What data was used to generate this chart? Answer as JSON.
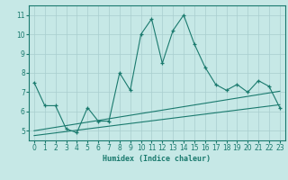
{
  "xlabel": "Humidex (Indice chaleur)",
  "background_color": "#c6e8e6",
  "line_color": "#1a7a6e",
  "grid_color": "#a8cece",
  "xlim": [
    -0.5,
    23.5
  ],
  "ylim": [
    4.5,
    11.5
  ],
  "yticks": [
    5,
    6,
    7,
    8,
    9,
    10,
    11
  ],
  "xticks": [
    0,
    1,
    2,
    3,
    4,
    5,
    6,
    7,
    8,
    9,
    10,
    11,
    12,
    13,
    14,
    15,
    16,
    17,
    18,
    19,
    20,
    21,
    22,
    23
  ],
  "main_x": [
    0,
    1,
    2,
    3,
    4,
    5,
    6,
    7,
    8,
    9,
    10,
    11,
    12,
    13,
    14,
    15,
    16,
    17,
    18,
    19,
    20,
    21,
    22,
    23
  ],
  "main_y": [
    7.5,
    6.3,
    6.3,
    5.1,
    4.9,
    6.2,
    5.5,
    5.5,
    8.0,
    7.1,
    10.0,
    10.8,
    8.5,
    10.2,
    11.0,
    9.5,
    8.3,
    7.4,
    7.1,
    7.4,
    7.0,
    7.6,
    7.3,
    6.2
  ],
  "trend1_x": [
    0,
    23
  ],
  "trend1_y": [
    5.0,
    7.05
  ],
  "trend2_x": [
    0,
    23
  ],
  "trend2_y": [
    4.75,
    6.35
  ]
}
